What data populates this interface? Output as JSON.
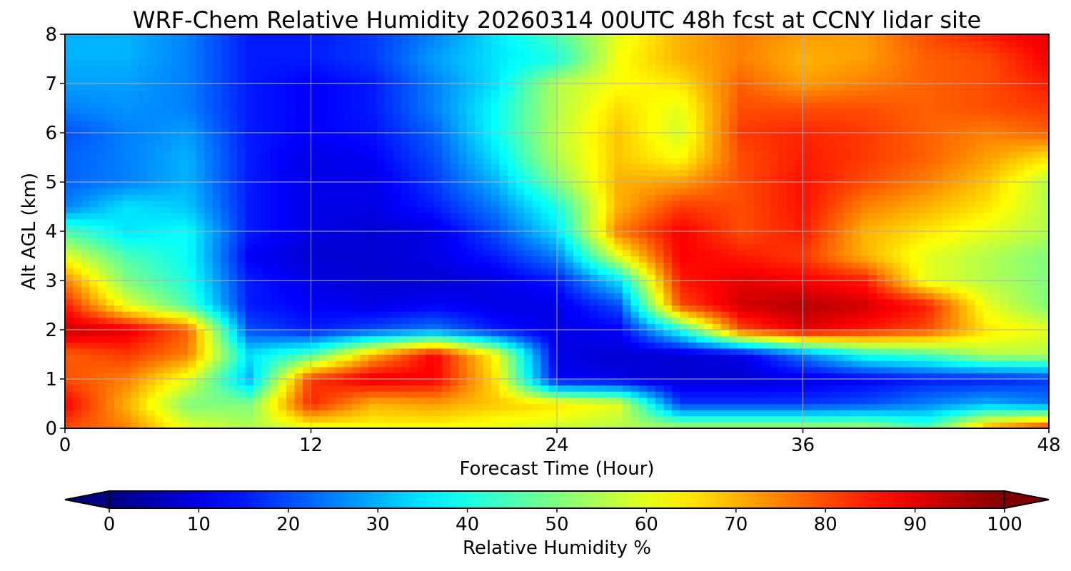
{
  "chart_data": {
    "type": "heatmap",
    "title": "WRF-Chem Relative Humidity 20260314 00UTC 48h fcst at CCNY lidar site",
    "xlabel": "Forecast Time (Hour)",
    "ylabel": "Alt AGL (km)",
    "xlim": [
      0,
      48
    ],
    "ylim": [
      0,
      8
    ],
    "x_ticks": [
      0,
      12,
      24,
      36,
      48
    ],
    "y_ticks": [
      0,
      1,
      2,
      3,
      4,
      5,
      6,
      7,
      8
    ],
    "grid": true,
    "colormap": "jet",
    "colorbar": {
      "label": "Relative Humidity %",
      "range": [
        0,
        100
      ],
      "ticks": [
        0,
        10,
        20,
        30,
        40,
        50,
        60,
        70,
        80,
        90,
        100
      ],
      "placement": "bottom",
      "extend": "both"
    },
    "x": [
      0,
      3,
      6,
      9,
      12,
      15,
      18,
      21,
      24,
      27,
      30,
      33,
      36,
      39,
      42,
      45,
      48
    ],
    "y": [
      0,
      0.5,
      1,
      1.5,
      2,
      2.5,
      3,
      3.5,
      4,
      4.5,
      5,
      5.5,
      6,
      6.5,
      7,
      7.5,
      8
    ],
    "z": [
      [
        80,
        75,
        60,
        55,
        60,
        62,
        62,
        60,
        58,
        55,
        55,
        55,
        55,
        55,
        45,
        72,
        85
      ],
      [
        88,
        70,
        50,
        50,
        84,
        70,
        72,
        68,
        65,
        60,
        18,
        18,
        18,
        20,
        25,
        30,
        25
      ],
      [
        80,
        75,
        60,
        30,
        82,
        90,
        88,
        65,
        12,
        10,
        8,
        8,
        10,
        12,
        15,
        15,
        18
      ],
      [
        78,
        82,
        75,
        35,
        45,
        70,
        88,
        62,
        10,
        8,
        8,
        10,
        25,
        40,
        45,
        55,
        55
      ],
      [
        93,
        90,
        78,
        20,
        15,
        20,
        25,
        15,
        10,
        12,
        40,
        80,
        90,
        85,
        80,
        65,
        60
      ],
      [
        85,
        60,
        45,
        15,
        12,
        10,
        12,
        10,
        10,
        20,
        80,
        92,
        95,
        92,
        85,
        60,
        50
      ],
      [
        75,
        50,
        40,
        15,
        10,
        8,
        8,
        10,
        15,
        35,
        85,
        90,
        88,
        85,
        60,
        55,
        50
      ],
      [
        60,
        45,
        38,
        12,
        8,
        8,
        10,
        15,
        25,
        60,
        88,
        85,
        82,
        70,
        60,
        55,
        50
      ],
      [
        45,
        35,
        38,
        15,
        10,
        8,
        10,
        20,
        35,
        75,
        88,
        80,
        85,
        70,
        65,
        60,
        55
      ],
      [
        25,
        35,
        32,
        15,
        10,
        10,
        15,
        25,
        40,
        70,
        82,
        80,
        86,
        75,
        70,
        65,
        55
      ],
      [
        22,
        25,
        30,
        15,
        10,
        10,
        18,
        30,
        50,
        70,
        72,
        80,
        86,
        80,
        75,
        68,
        55
      ],
      [
        22,
        25,
        30,
        15,
        10,
        12,
        20,
        35,
        55,
        68,
        62,
        80,
        85,
        82,
        78,
        72,
        65
      ],
      [
        20,
        25,
        28,
        15,
        12,
        14,
        22,
        38,
        56,
        68,
        58,
        82,
        84,
        82,
        78,
        75,
        78
      ],
      [
        25,
        27,
        25,
        15,
        12,
        15,
        25,
        38,
        55,
        66,
        60,
        80,
        80,
        80,
        78,
        80,
        82
      ],
      [
        28,
        28,
        25,
        15,
        12,
        15,
        25,
        35,
        55,
        62,
        65,
        78,
        72,
        75,
        78,
        80,
        85
      ],
      [
        30,
        30,
        25,
        15,
        15,
        18,
        28,
        35,
        40,
        62,
        70,
        75,
        70,
        72,
        78,
        80,
        88
      ],
      [
        30,
        30,
        25,
        15,
        15,
        18,
        25,
        35,
        45,
        60,
        70,
        75,
        72,
        72,
        80,
        85,
        90
      ]
    ]
  }
}
